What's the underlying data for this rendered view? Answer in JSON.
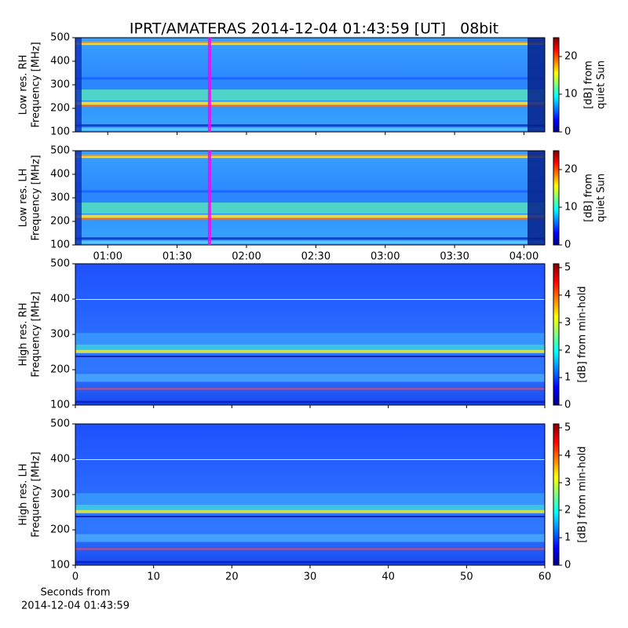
{
  "chart_data": [
    {
      "type": "heatmap",
      "title": "IPRT/AMATERAS 2014-12-04 01:43:59 [UT]   08bit",
      "ylabel": [
        "Low res. RH",
        "Frequency [MHz]"
      ],
      "ylim": [
        100,
        500
      ],
      "yticks": [
        100,
        200,
        300,
        400,
        500
      ],
      "xlim": [
        46,
        249
      ],
      "xshare": 1,
      "clabel": [
        "[dB] from",
        "quiet Sun"
      ],
      "clim": [
        0,
        25
      ],
      "cticks": [
        0,
        10,
        20
      ],
      "marker": {
        "x": 104,
        "color": "#ff00ff"
      },
      "colormap": "jet"
    },
    {
      "type": "heatmap",
      "ylabel": [
        "Low res. LH",
        "Frequency [MHz]"
      ],
      "ylim": [
        100,
        500
      ],
      "yticks": [
        100,
        200,
        300,
        400,
        500
      ],
      "xlim": [
        46,
        249
      ],
      "xticks": [
        {
          "value": 60,
          "label": "01:00"
        },
        {
          "value": 90,
          "label": "01:30"
        },
        {
          "value": 120,
          "label": "02:00"
        },
        {
          "value": 150,
          "label": "02:30"
        },
        {
          "value": 180,
          "label": "03:00"
        },
        {
          "value": 210,
          "label": "03:30"
        },
        {
          "value": 240,
          "label": "04:00"
        }
      ],
      "clabel": [
        "[dB] from",
        "quiet Sun"
      ],
      "clim": [
        0,
        25
      ],
      "cticks": [
        0,
        10,
        20
      ],
      "marker": {
        "x": 104,
        "color": "#ff00ff"
      },
      "colormap": "jet"
    },
    {
      "type": "heatmap",
      "ylabel": [
        "High res. RH",
        "Frequency [MHz]"
      ],
      "ylim": [
        100,
        500
      ],
      "yticks": [
        100,
        200,
        300,
        400,
        500
      ],
      "xlim": [
        0,
        60
      ],
      "xshare": 3,
      "clabel": [
        "[dB] from min-hold"
      ],
      "clim": [
        0,
        5.14
      ],
      "cticks": [
        0,
        1,
        2,
        3,
        4,
        5
      ],
      "colormap": "jet"
    },
    {
      "type": "heatmap",
      "ylabel": [
        "High res. LH",
        "Frequency [MHz]"
      ],
      "ylim": [
        100,
        500
      ],
      "yticks": [
        100,
        200,
        300,
        400,
        500
      ],
      "xlim": [
        0,
        60
      ],
      "xticks": [
        0,
        10,
        20,
        30,
        40,
        50,
        60
      ],
      "xlabel": [
        "Seconds from",
        "2014-12-04 01:43:59"
      ],
      "clabel": [
        "[dB] from min-hold"
      ],
      "clim": [
        0,
        5.14
      ],
      "cticks": [
        0,
        1,
        2,
        3,
        4,
        5
      ],
      "colormap": "jet"
    }
  ]
}
